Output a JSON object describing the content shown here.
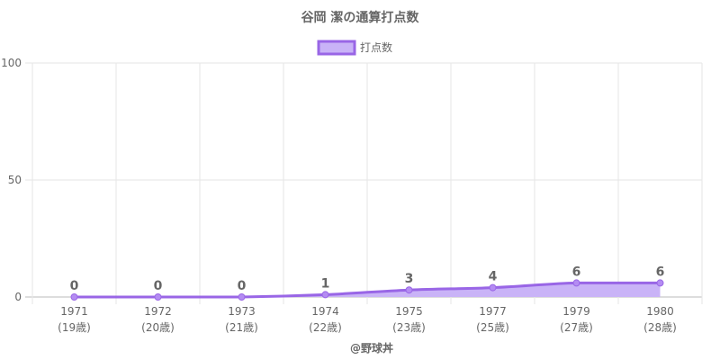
{
  "chart_data": {
    "type": "area",
    "title": "谷岡 潔の通算打点数",
    "categories": [
      "1971",
      "1972",
      "1973",
      "1974",
      "1975",
      "1977",
      "1979",
      "1980"
    ],
    "category_sublabels": [
      "(19歳)",
      "(20歳)",
      "(21歳)",
      "(22歳)",
      "(23歳)",
      "(25歳)",
      "(27歳)",
      "(28歳)"
    ],
    "series": [
      {
        "name": "打点数",
        "values": [
          0,
          0,
          0,
          1,
          3,
          4,
          6,
          6
        ],
        "line_color": "#9966e6",
        "fill_color": "#c9b3f7"
      }
    ],
    "ylim": [
      0,
      100
    ],
    "yticks": [
      0,
      50,
      100
    ],
    "grid": true,
    "legend_position": "top-center",
    "xlabel": "",
    "ylabel": ""
  },
  "footer": "@野球丼"
}
